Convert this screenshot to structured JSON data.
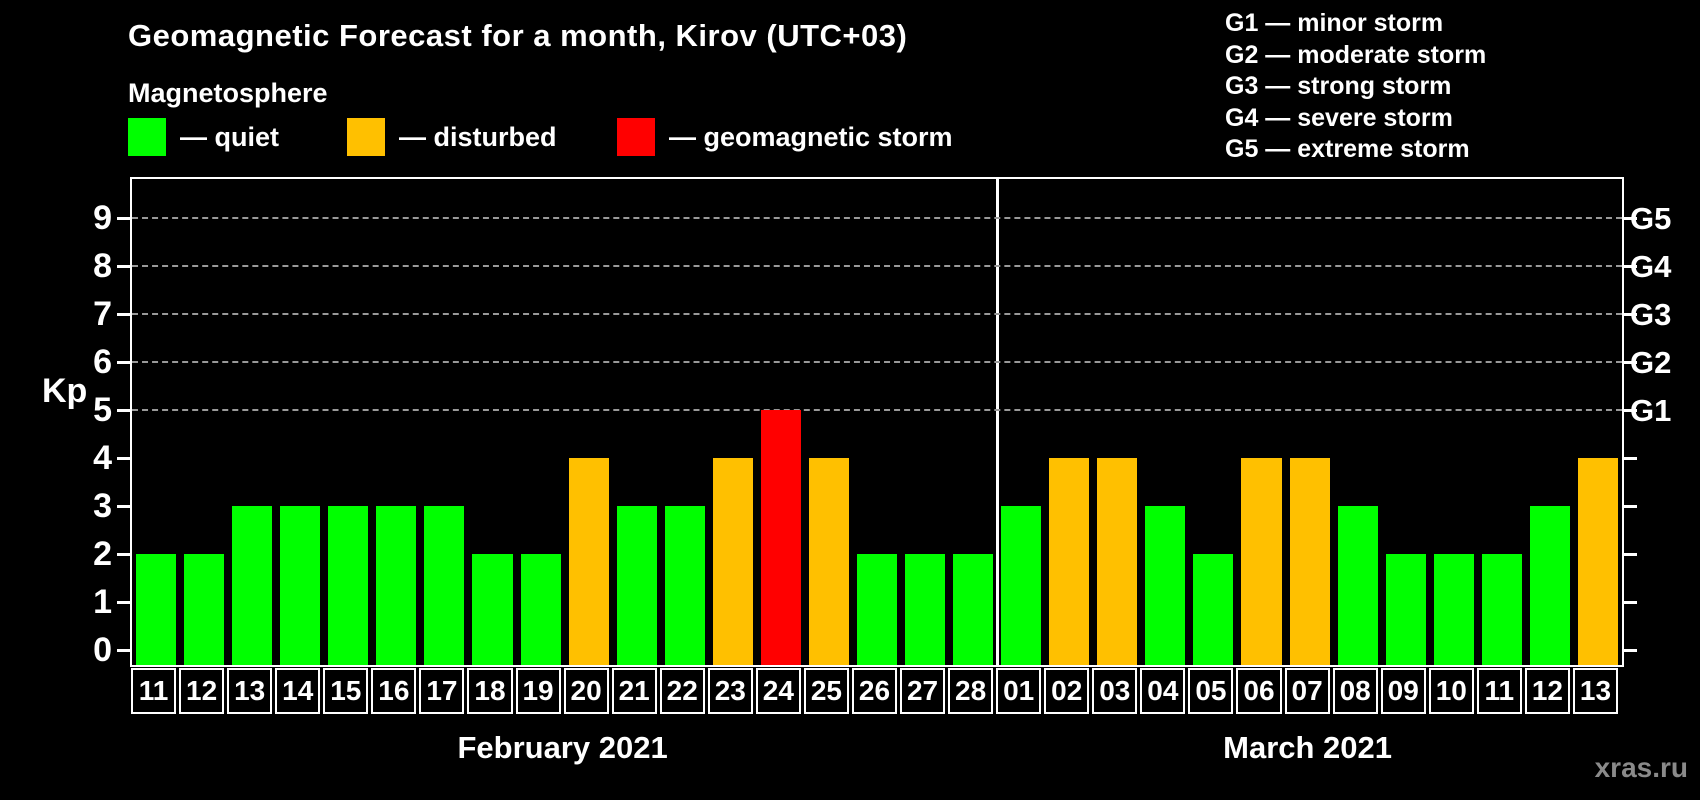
{
  "header": {
    "title": "Geomagnetic Forecast for a month, Kirov (UTC+03)",
    "subtitle": "Magnetosphere"
  },
  "status_legend": [
    {
      "key": "quiet",
      "label": "— quiet",
      "color": "#00ff00"
    },
    {
      "key": "disturbed",
      "label": "— disturbed",
      "color": "#ffc000"
    },
    {
      "key": "storm",
      "label": "— geomagnetic storm",
      "color": "#ff0000"
    }
  ],
  "g_scale_legend": [
    "G1 — minor storm",
    "G2 — moderate storm",
    "G3 — strong storm",
    "G4 — severe storm",
    "G5 — extreme storm"
  ],
  "watermark": "xras.ru",
  "colors": {
    "background": "#000000",
    "axis": "#ffffff",
    "grid": "#999999",
    "quiet": "#00ff00",
    "disturbed": "#ffc000",
    "storm": "#ff0000",
    "watermark": "#8a8a8a"
  },
  "chart_data": {
    "type": "bar",
    "title": "Geomagnetic Forecast for a month, Kirov (UTC+03)",
    "ylabel": "Kp",
    "ylim": [
      0,
      9.8
    ],
    "yticks": [
      0,
      1,
      2,
      3,
      4,
      5,
      6,
      7,
      8,
      9
    ],
    "right_axis": [
      {
        "kp": 5,
        "label": "G1"
      },
      {
        "kp": 6,
        "label": "G2"
      },
      {
        "kp": 7,
        "label": "G3"
      },
      {
        "kp": 8,
        "label": "G4"
      },
      {
        "kp": 9,
        "label": "G5"
      }
    ],
    "gridlines_at_kp": [
      5,
      6,
      7,
      8,
      9
    ],
    "grid_style": "dashed",
    "legend_position": "top",
    "color_rule": {
      "quiet_max_kp": 3,
      "disturbed_kp": 4,
      "storm_min_kp": 5
    },
    "series": [
      {
        "month": "February 2021",
        "days": [
          "11",
          "12",
          "13",
          "14",
          "15",
          "16",
          "17",
          "18",
          "19",
          "20",
          "21",
          "22",
          "23",
          "24",
          "25",
          "26",
          "27",
          "28"
        ],
        "kp": [
          2,
          2,
          3,
          3,
          3,
          3,
          3,
          2,
          2,
          4,
          3,
          3,
          4,
          5,
          4,
          2,
          2,
          2
        ]
      },
      {
        "month": "March 2021",
        "days": [
          "01",
          "02",
          "03",
          "04",
          "05",
          "06",
          "07",
          "08",
          "09",
          "10",
          "11",
          "12",
          "13"
        ],
        "kp": [
          3,
          4,
          4,
          3,
          2,
          4,
          4,
          3,
          2,
          2,
          2,
          3,
          4
        ]
      }
    ]
  }
}
